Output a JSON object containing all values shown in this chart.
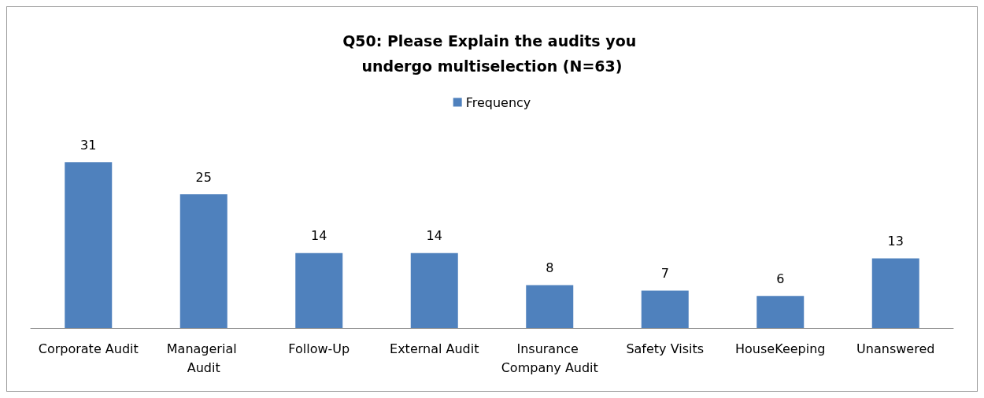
{
  "chart_data": {
    "type": "bar",
    "title": "Q50: Please Explain the audits you undergo multiselection (N=63)",
    "categories": [
      "Corporate Audit",
      "Managerial Audit",
      "Follow-Up",
      "External Audit",
      "Insurance Company Audit",
      "Safety Visits",
      "HouseKeeping",
      "Unanswered"
    ],
    "series": [
      {
        "name": "Frequency",
        "color": "#4f81bd",
        "values": [
          31,
          25,
          14,
          14,
          8,
          7,
          6,
          13
        ]
      }
    ],
    "data_labels": true,
    "legend": "top",
    "grid": false,
    "tick_labels": "x"
  }
}
